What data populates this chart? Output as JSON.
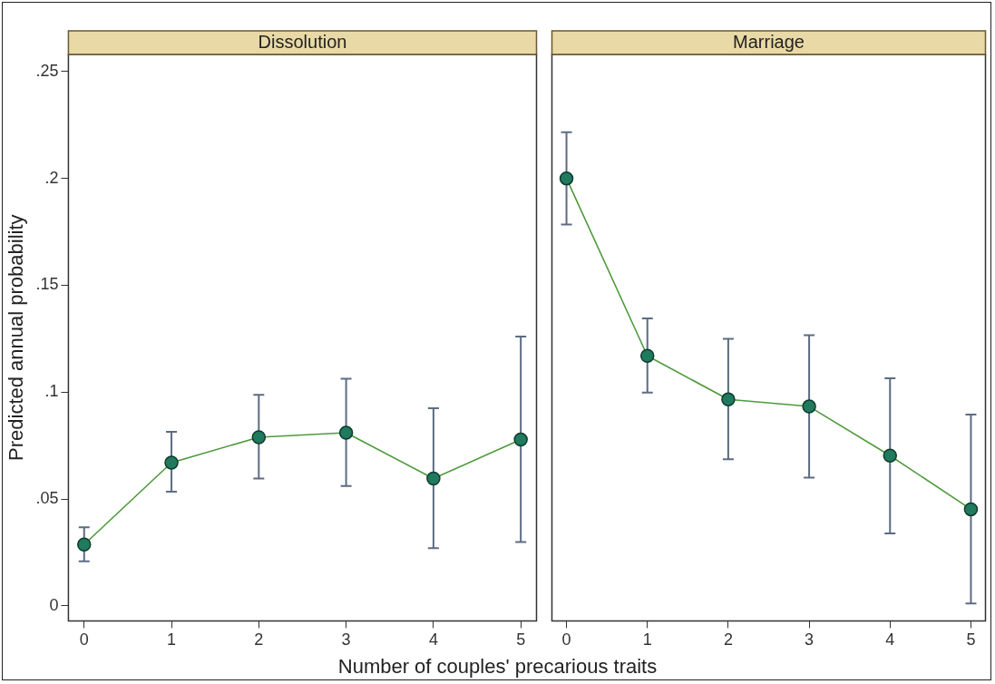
{
  "chart_data": [
    {
      "type": "line",
      "title": "Dissolution",
      "ylabel": "Predicted annual probability",
      "xlabel": "Number of couples' precarious traits",
      "x": [
        0,
        1,
        2,
        3,
        4,
        5
      ],
      "series": [
        {
          "color": "#4e9a3c",
          "values": [
            0.0287,
            0.067,
            0.0789,
            0.081,
            0.0596,
            0.0778
          ],
          "errors": [
            [
              0.0209,
              0.0368
            ],
            [
              0.0534,
              0.0814
            ],
            [
              0.0596,
              0.0987
            ],
            [
              0.0561,
              0.1063
            ],
            [
              0.027,
              0.0925
            ],
            [
              0.0299,
              0.126
            ]
          ]
        }
      ],
      "marker": "circle",
      "grid": false,
      "legend": false,
      "xlim": [
        -0.18,
        5.18
      ],
      "xticks": [
        0,
        1,
        2,
        3,
        4,
        5
      ],
      "ylim": [
        -0.007,
        0.258
      ],
      "yticks": [
        {
          "value": 0,
          "label": "0"
        },
        {
          "value": 0.05,
          "label": ".05"
        },
        {
          "value": 0.1,
          "label": ".1"
        },
        {
          "value": 0.15,
          "label": ".15"
        },
        {
          "value": 0.2,
          "label": ".2"
        },
        {
          "value": 0.25,
          "label": ".25"
        }
      ]
    },
    {
      "type": "line",
      "title": "Marriage",
      "x": [
        0,
        1,
        2,
        3,
        4,
        5
      ],
      "series": [
        {
          "color": "#4e9a3c",
          "values": [
            0.2,
            0.117,
            0.0966,
            0.0933,
            0.0703,
            0.0452
          ],
          "errors": [
            [
              0.1784,
              0.2216
            ],
            [
              0.0998,
              0.1345
            ],
            [
              0.0686,
              0.1249
            ],
            [
              0.06,
              0.1266
            ],
            [
              0.0339,
              0.1065
            ],
            [
              0.0011,
              0.0895
            ]
          ]
        }
      ],
      "marker": "circle",
      "grid": false,
      "legend": false,
      "tick_labels": "x",
      "xlim": [
        -0.18,
        5.18
      ],
      "xticks": [
        0,
        1,
        2,
        3,
        4,
        5
      ],
      "ylim": [
        -0.007,
        0.258
      ]
    }
  ]
}
